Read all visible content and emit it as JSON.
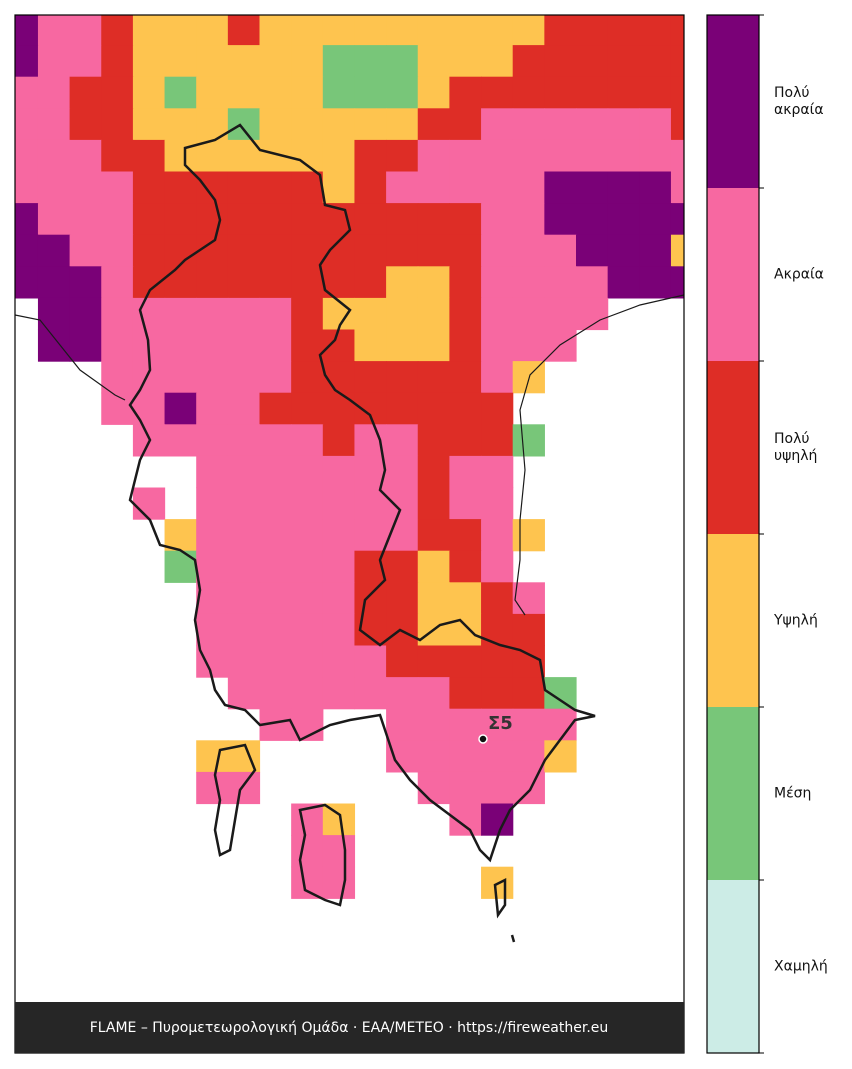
{
  "map": {
    "legend": {
      "levels": [
        {
          "label": "Χαμηλή",
          "color": "#ccece6"
        },
        {
          "label": "Μέση",
          "color": "#78c679"
        },
        {
          "label": "Υψηλή",
          "color": "#fec44f"
        },
        {
          "label": "Πολύ υψηλή",
          "color": "#de2d26"
        },
        {
          "label": "Ακραία",
          "color": "#f768a1"
        },
        {
          "label": "Πολύ ακραία",
          "color": "#7a0177"
        }
      ]
    },
    "stations": [
      {
        "label": "Σ5"
      }
    ],
    "footer": "FLAME – Πυρομετεωρολογική Ομάδα · ΕΑΑ/METEO · https://fireweather.eu"
  }
}
